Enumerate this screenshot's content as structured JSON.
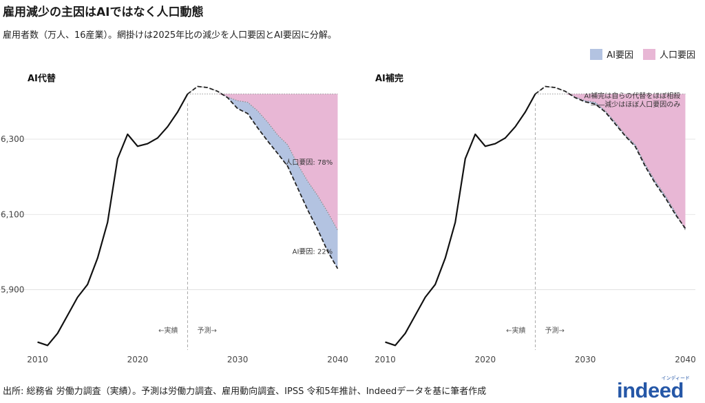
{
  "title": "雇用減少の主因はAIではなく人口動態",
  "subtitle": "雇用者数（万人、16産業）。網掛けは2025年比の減少を人口要因とAI要因に分解。",
  "legend": {
    "items": [
      {
        "label": "AI要因",
        "color": "#b3c3e1"
      },
      {
        "label": "人口要因",
        "color": "#e8b7d5"
      }
    ]
  },
  "source": "出所: 総務省 労働力調査（実績）。予測は労働力調査、雇用動向調査、IPSS 令和5年推計、Indeedデータを基に筆者作成",
  "logo": {
    "word": "indeed",
    "kana": "インディード"
  },
  "colors": {
    "actual_line": "#111111",
    "ai_fill": "#b3c3e1",
    "pop_fill": "#e8b7d5",
    "grid": "#dddddd"
  },
  "chart_data": [
    {
      "type": "line",
      "panel_title": "AI代替",
      "xlim": [
        2009,
        2041
      ],
      "ylim": [
        5740,
        6450
      ],
      "x_ticks": [
        2010,
        2020,
        2030,
        2040
      ],
      "y_ticks": [
        5900,
        6100,
        6300
      ],
      "y_tick_labels": [
        "5,900",
        "6,100",
        "6,300"
      ],
      "divider_year": 2025,
      "baseline_2025": 6420,
      "label_actual": "←実績",
      "label_forecast": "予測→",
      "actual": {
        "x": [
          2010,
          2011,
          2012,
          2013,
          2014,
          2015,
          2016,
          2017,
          2018,
          2019,
          2020,
          2021,
          2022,
          2023,
          2024,
          2025
        ],
        "y": [
          5761,
          5752,
          5784,
          5832,
          5880,
          5914,
          5984,
          6079,
          6248,
          6313,
          6281,
          6288,
          6303,
          6333,
          6372,
          6420
        ]
      },
      "forecast_total": {
        "x": [
          2025,
          2026,
          2027,
          2028,
          2029,
          2030,
          2031,
          2032,
          2033,
          2034,
          2035,
          2036,
          2037,
          2038,
          2039,
          2040
        ],
        "y": [
          6420,
          6440,
          6437,
          6427,
          6410,
          6381,
          6368,
          6330,
          6295,
          6262,
          6228,
          6170,
          6112,
          6060,
          6002,
          5956
        ]
      },
      "forecast_population": {
        "x": [
          2025,
          2026,
          2027,
          2028,
          2029,
          2030,
          2031,
          2032,
          2033,
          2034,
          2035,
          2036,
          2037,
          2038,
          2039,
          2040
        ],
        "y": [
          6420,
          6440,
          6437,
          6427,
          6412,
          6402,
          6398,
          6375,
          6345,
          6311,
          6285,
          6233,
          6188,
          6150,
          6106,
          6058
        ]
      },
      "annotations": [
        {
          "text": "人口要因: 78%",
          "x": 2039.5,
          "y": 6232
        },
        {
          "text": "AI要因: 22%",
          "x": 2039.5,
          "y": 5995
        }
      ]
    },
    {
      "type": "line",
      "panel_title": "AI補完",
      "xlim": [
        2009,
        2041
      ],
      "ylim": [
        5740,
        6450
      ],
      "x_ticks": [
        2010,
        2020,
        2030,
        2040
      ],
      "y_ticks": [
        5900,
        6100,
        6300
      ],
      "y_tick_labels": [
        "",
        "",
        ""
      ],
      "divider_year": 2025,
      "baseline_2025": 6420,
      "label_actual": "←実績",
      "label_forecast": "予測→",
      "actual": {
        "x": [
          2010,
          2011,
          2012,
          2013,
          2014,
          2015,
          2016,
          2017,
          2018,
          2019,
          2020,
          2021,
          2022,
          2023,
          2024,
          2025
        ],
        "y": [
          5761,
          5752,
          5784,
          5832,
          5880,
          5914,
          5984,
          6079,
          6248,
          6313,
          6281,
          6288,
          6303,
          6333,
          6372,
          6420
        ]
      },
      "forecast_total": {
        "x": [
          2025,
          2026,
          2027,
          2028,
          2029,
          2030,
          2031,
          2032,
          2033,
          2034,
          2035,
          2036,
          2037,
          2038,
          2039,
          2040
        ],
        "y": [
          6420,
          6440,
          6437,
          6427,
          6410,
          6399,
          6393,
          6372,
          6340,
          6308,
          6280,
          6227,
          6182,
          6144,
          6100,
          6063
        ]
      },
      "forecast_population": {
        "x": [
          2025,
          2026,
          2027,
          2028,
          2029,
          2030,
          2031,
          2032,
          2033,
          2034,
          2035,
          2036,
          2037,
          2038,
          2039,
          2040
        ],
        "y": [
          6420,
          6440,
          6437,
          6427,
          6412,
          6402,
          6398,
          6375,
          6345,
          6311,
          6285,
          6233,
          6188,
          6150,
          6106,
          6058
        ]
      },
      "annotations": [
        {
          "text": "AI補完は自らの代替をほぼ相殺",
          "x": 2039.5,
          "y": 6409
        },
        {
          "text": "――減少はほぼ人口要因のみ",
          "x": 2039.5,
          "y": 6386
        }
      ]
    }
  ]
}
